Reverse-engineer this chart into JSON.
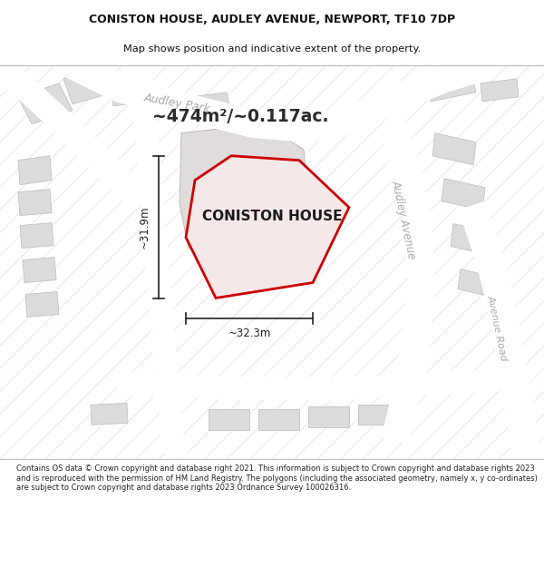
{
  "title": "CONISTON HOUSE, AUDLEY AVENUE, NEWPORT, TF10 7DP",
  "subtitle": "Map shows position and indicative extent of the property.",
  "footer": "Contains OS data © Crown copyright and database right 2021. This information is subject to Crown copyright and database rights 2023 and is reproduced with the permission of HM Land Registry. The polygons (including the associated geometry, namely x, y co-ordinates) are subject to Crown copyright and database rights 2023 Ordnance Survey 100026316.",
  "area_text": "~474m²/~0.117ac.",
  "property_name": "CONISTON HOUSE",
  "dim_width": "~32.3m",
  "dim_height": "~31.9m",
  "map_bg": "#f2f0f0",
  "building_color": "#dddada",
  "building_edge": "#c5c0c0",
  "property_fill": "#f5e8e8",
  "property_edge": "#cc0000",
  "dim_color": "#222222",
  "street_label_color": "#aaaaaa",
  "title_color": "#111111",
  "footer_color": "#222222",
  "diag_line_color": "#e8c8c8",
  "white": "#ffffff"
}
